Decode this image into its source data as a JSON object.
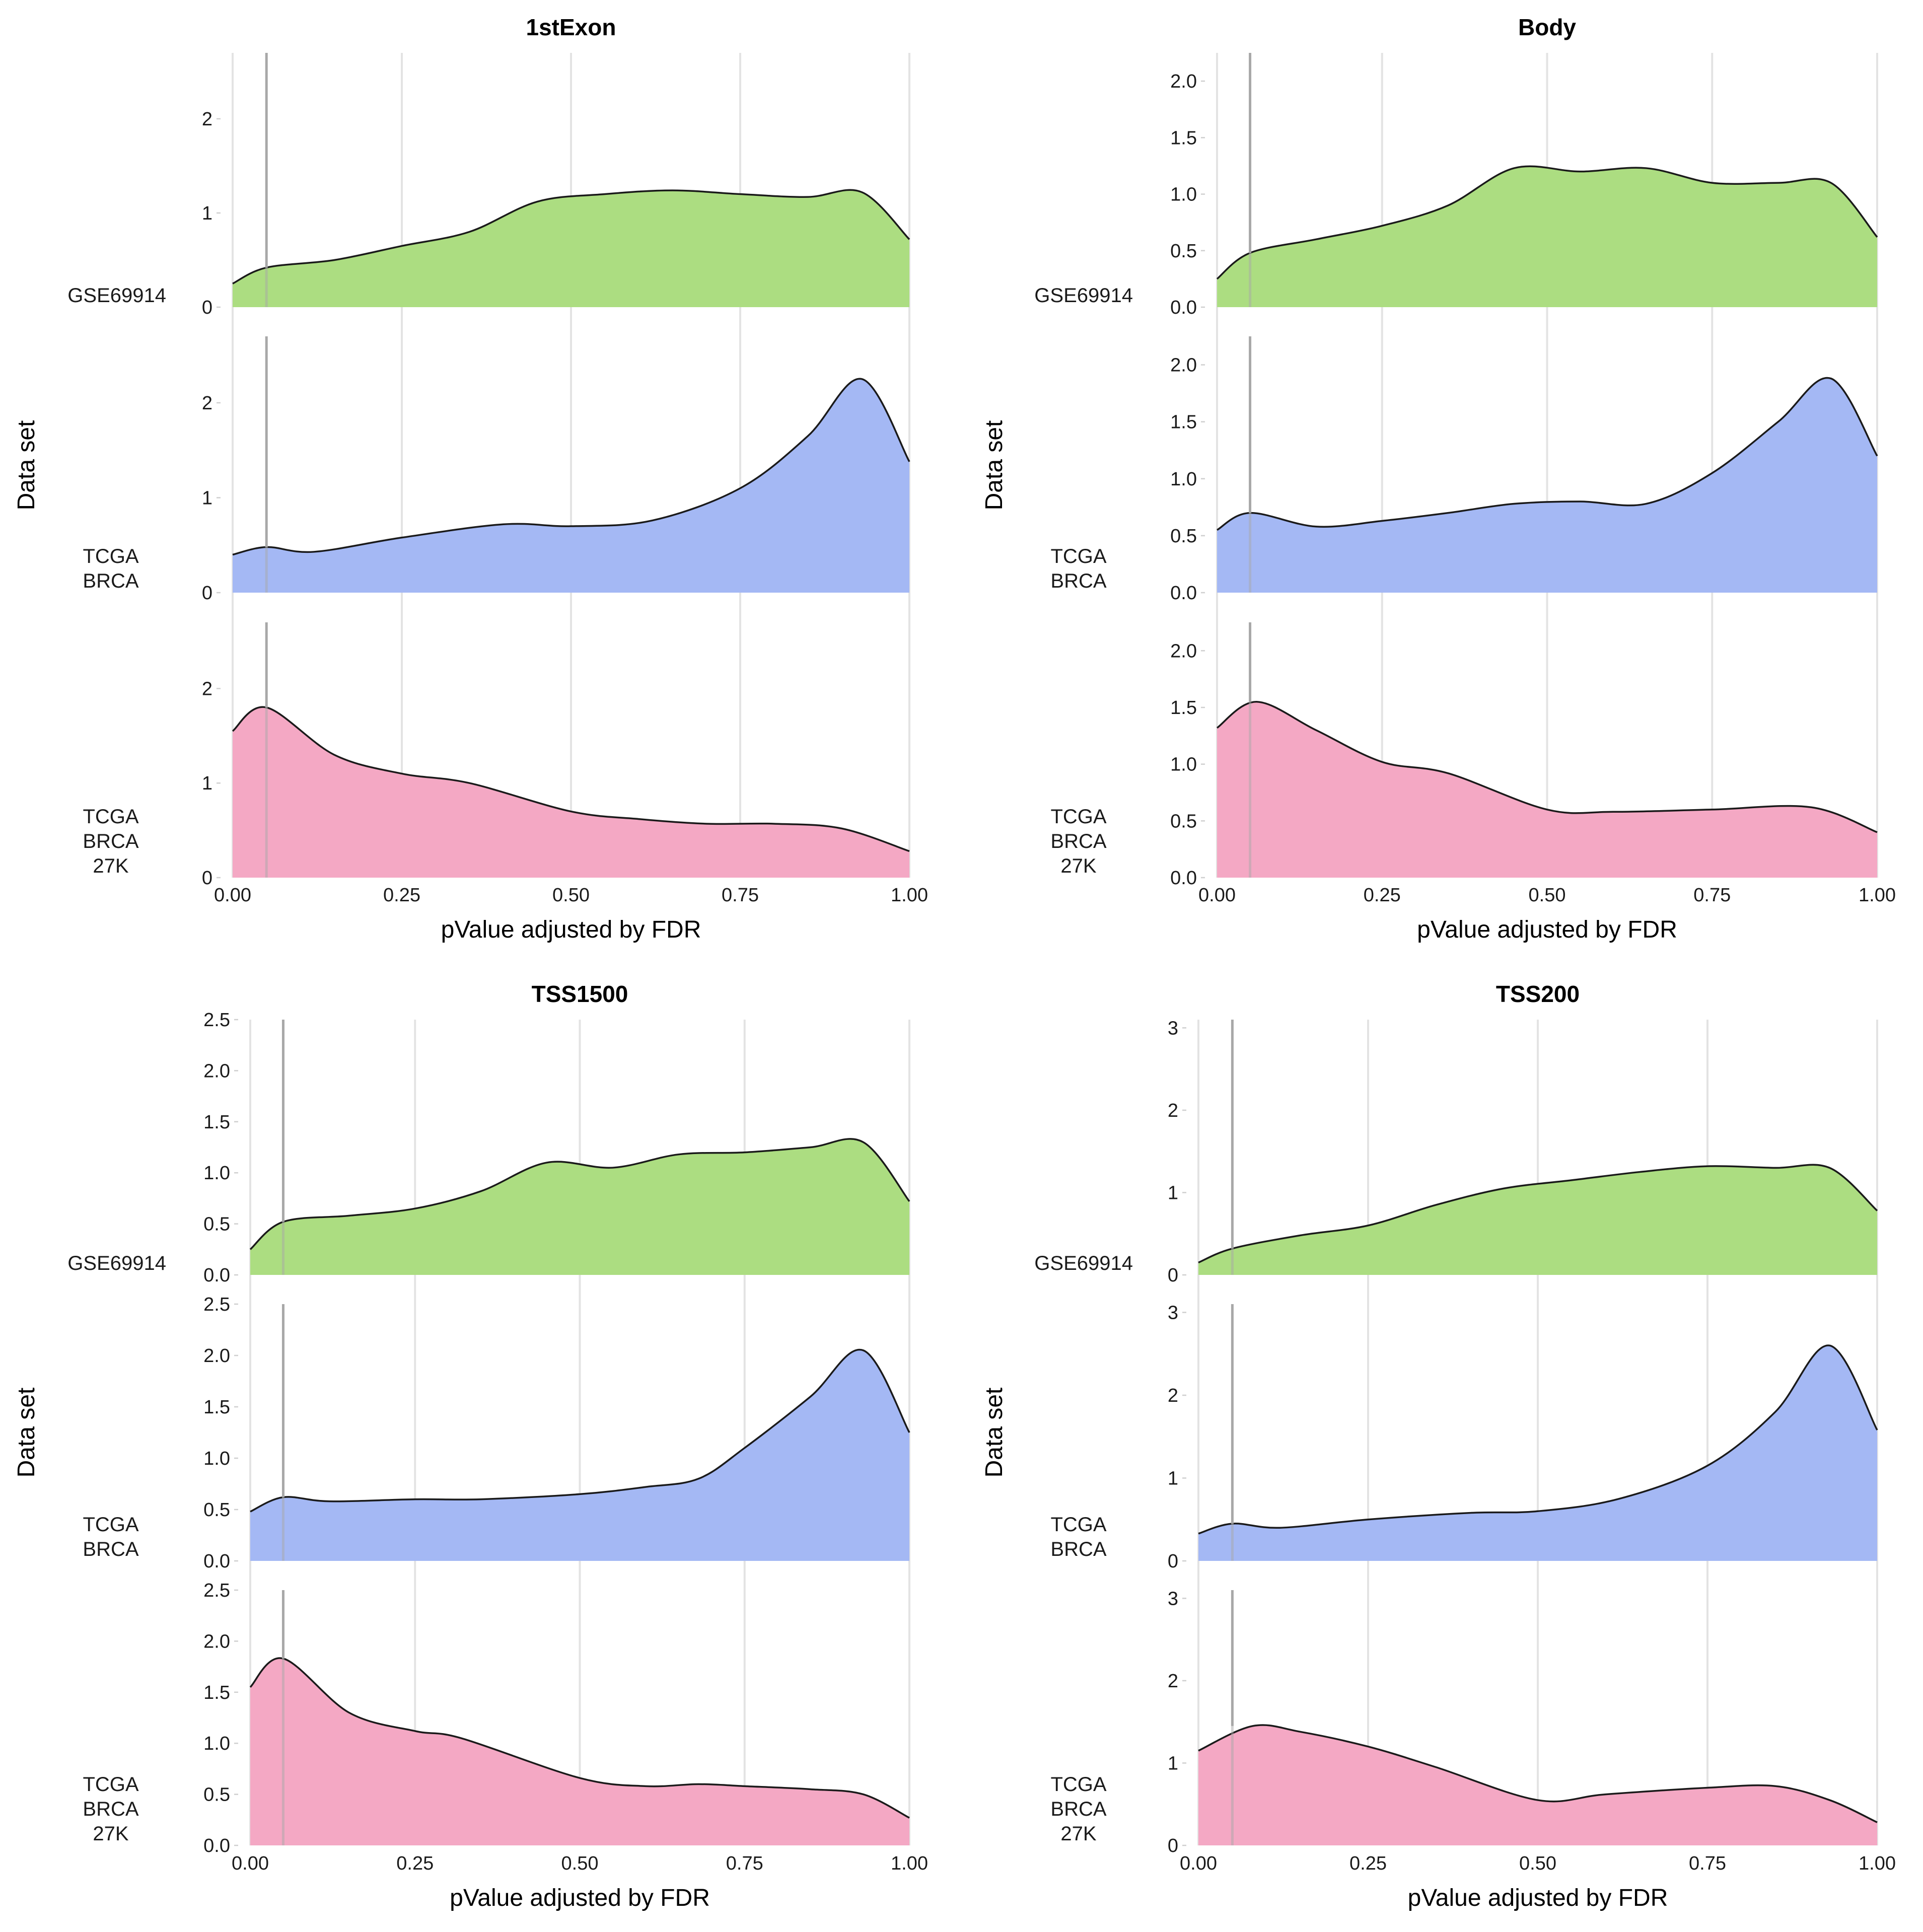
{
  "chart_data": [
    {
      "type": "area",
      "title": "1stExon",
      "xlabel": "pValue adjusted by FDR",
      "ylabel": "Data set",
      "xlim": [
        0,
        1
      ],
      "ylim": [
        0,
        2.7
      ],
      "x_ticks": [
        "0.00",
        "0.25",
        "0.50",
        "0.75",
        "1.00"
      ],
      "y_ticks": [
        "0",
        "1",
        "2"
      ],
      "marker_x": 0.05,
      "series": [
        {
          "name": "GSE69914",
          "label_lines": [
            "GSE69914"
          ],
          "color": "#ACDD81",
          "x": [
            0,
            0.05,
            0.15,
            0.25,
            0.35,
            0.45,
            0.55,
            0.65,
            0.75,
            0.85,
            0.93,
            1.0
          ],
          "y": [
            0.25,
            0.42,
            0.5,
            0.65,
            0.8,
            1.12,
            1.2,
            1.24,
            1.2,
            1.17,
            1.22,
            0.72
          ]
        },
        {
          "name": "TCGA BRCA",
          "label_lines": [
            "TCGA",
            "BRCA"
          ],
          "color": "#A4B8F4",
          "x": [
            0,
            0.05,
            0.12,
            0.25,
            0.4,
            0.5,
            0.62,
            0.75,
            0.85,
            0.93,
            1.0
          ],
          "y": [
            0.4,
            0.48,
            0.43,
            0.58,
            0.72,
            0.7,
            0.76,
            1.1,
            1.65,
            2.25,
            1.38
          ]
        },
        {
          "name": "TCGA BRCA 27K",
          "label_lines": [
            "TCGA",
            "BRCA",
            "27K"
          ],
          "color": "#F4A8C4",
          "x": [
            0,
            0.05,
            0.15,
            0.25,
            0.35,
            0.5,
            0.6,
            0.7,
            0.8,
            0.9,
            1.0
          ],
          "y": [
            1.55,
            1.8,
            1.3,
            1.1,
            1.0,
            0.7,
            0.62,
            0.57,
            0.57,
            0.52,
            0.28
          ]
        }
      ]
    },
    {
      "type": "area",
      "title": "Body",
      "xlabel": "pValue adjusted by FDR",
      "ylabel": "Data set",
      "xlim": [
        0,
        1
      ],
      "ylim": [
        0,
        2.25
      ],
      "x_ticks": [
        "0.00",
        "0.25",
        "0.50",
        "0.75",
        "1.00"
      ],
      "y_ticks": [
        "0.0",
        "0.5",
        "1.0",
        "1.5",
        "2.0"
      ],
      "marker_x": 0.05,
      "series": [
        {
          "name": "GSE69914",
          "label_lines": [
            "GSE69914"
          ],
          "color": "#ACDD81",
          "x": [
            0,
            0.05,
            0.15,
            0.25,
            0.35,
            0.45,
            0.55,
            0.65,
            0.75,
            0.85,
            0.93,
            1.0
          ],
          "y": [
            0.25,
            0.48,
            0.6,
            0.72,
            0.9,
            1.23,
            1.2,
            1.23,
            1.1,
            1.1,
            1.1,
            0.62
          ]
        },
        {
          "name": "TCGA BRCA",
          "label_lines": [
            "TCGA",
            "BRCA"
          ],
          "color": "#A4B8F4",
          "x": [
            0,
            0.05,
            0.15,
            0.25,
            0.35,
            0.45,
            0.55,
            0.65,
            0.75,
            0.85,
            0.93,
            1.0
          ],
          "y": [
            0.55,
            0.7,
            0.58,
            0.63,
            0.7,
            0.78,
            0.8,
            0.78,
            1.05,
            1.5,
            1.88,
            1.2
          ]
        },
        {
          "name": "TCGA BRCA 27K",
          "label_lines": [
            "TCGA",
            "BRCA",
            "27K"
          ],
          "color": "#F4A8C4",
          "x": [
            0,
            0.06,
            0.15,
            0.25,
            0.35,
            0.5,
            0.6,
            0.75,
            0.9,
            1.0
          ],
          "y": [
            1.32,
            1.55,
            1.3,
            1.02,
            0.92,
            0.6,
            0.58,
            0.6,
            0.62,
            0.4
          ]
        }
      ]
    },
    {
      "type": "area",
      "title": "TSS1500",
      "xlabel": "pValue adjusted by FDR",
      "ylabel": "Data set",
      "xlim": [
        0,
        1
      ],
      "ylim": [
        0,
        2.5
      ],
      "x_ticks": [
        "0.00",
        "0.25",
        "0.50",
        "0.75",
        "1.00"
      ],
      "y_ticks": [
        "0.0",
        "0.5",
        "1.0",
        "1.5",
        "2.0",
        "2.5"
      ],
      "marker_x": 0.05,
      "series": [
        {
          "name": "GSE69914",
          "label_lines": [
            "GSE69914"
          ],
          "color": "#ACDD81",
          "x": [
            0,
            0.05,
            0.15,
            0.25,
            0.35,
            0.45,
            0.55,
            0.65,
            0.75,
            0.85,
            0.93,
            1.0
          ],
          "y": [
            0.25,
            0.52,
            0.58,
            0.65,
            0.82,
            1.1,
            1.05,
            1.18,
            1.2,
            1.25,
            1.3,
            0.72
          ]
        },
        {
          "name": "TCGA BRCA",
          "label_lines": [
            "TCGA",
            "BRCA"
          ],
          "color": "#A4B8F4",
          "x": [
            0,
            0.05,
            0.12,
            0.25,
            0.35,
            0.5,
            0.6,
            0.68,
            0.75,
            0.85,
            0.93,
            1.0
          ],
          "y": [
            0.48,
            0.62,
            0.58,
            0.6,
            0.6,
            0.65,
            0.72,
            0.8,
            1.1,
            1.6,
            2.05,
            1.25
          ]
        },
        {
          "name": "TCGA BRCA 27K",
          "label_lines": [
            "TCGA",
            "BRCA",
            "27K"
          ],
          "color": "#F4A8C4",
          "x": [
            0,
            0.05,
            0.15,
            0.25,
            0.32,
            0.5,
            0.6,
            0.68,
            0.75,
            0.85,
            0.93,
            1.0
          ],
          "y": [
            1.55,
            1.83,
            1.3,
            1.12,
            1.05,
            0.66,
            0.58,
            0.6,
            0.58,
            0.55,
            0.5,
            0.27
          ]
        }
      ]
    },
    {
      "type": "area",
      "title": "TSS200",
      "xlabel": "pValue adjusted by FDR",
      "ylabel": "Data set",
      "xlim": [
        0,
        1
      ],
      "ylim": [
        0,
        3.1
      ],
      "x_ticks": [
        "0.00",
        "0.25",
        "0.50",
        "0.75",
        "1.00"
      ],
      "y_ticks": [
        "0",
        "1",
        "2",
        "3"
      ],
      "marker_x": 0.05,
      "series": [
        {
          "name": "GSE69914",
          "label_lines": [
            "GSE69914"
          ],
          "color": "#ACDD81",
          "x": [
            0,
            0.05,
            0.15,
            0.25,
            0.35,
            0.45,
            0.55,
            0.65,
            0.75,
            0.85,
            0.93,
            1.0
          ],
          "y": [
            0.15,
            0.32,
            0.48,
            0.6,
            0.85,
            1.05,
            1.15,
            1.25,
            1.32,
            1.3,
            1.3,
            0.78
          ]
        },
        {
          "name": "TCGA BRCA",
          "label_lines": [
            "TCGA",
            "BRCA"
          ],
          "color": "#A4B8F4",
          "x": [
            0,
            0.05,
            0.12,
            0.25,
            0.4,
            0.5,
            0.62,
            0.75,
            0.85,
            0.93,
            1.0
          ],
          "y": [
            0.33,
            0.45,
            0.4,
            0.5,
            0.58,
            0.6,
            0.75,
            1.15,
            1.8,
            2.6,
            1.58
          ]
        },
        {
          "name": "TCGA BRCA 27K",
          "label_lines": [
            "TCGA",
            "BRCA",
            "27K"
          ],
          "color": "#F4A8C4",
          "x": [
            0,
            0.08,
            0.15,
            0.25,
            0.35,
            0.5,
            0.6,
            0.75,
            0.85,
            0.93,
            1.0
          ],
          "y": [
            1.15,
            1.45,
            1.38,
            1.2,
            0.95,
            0.55,
            0.62,
            0.7,
            0.72,
            0.55,
            0.28
          ]
        }
      ]
    }
  ]
}
